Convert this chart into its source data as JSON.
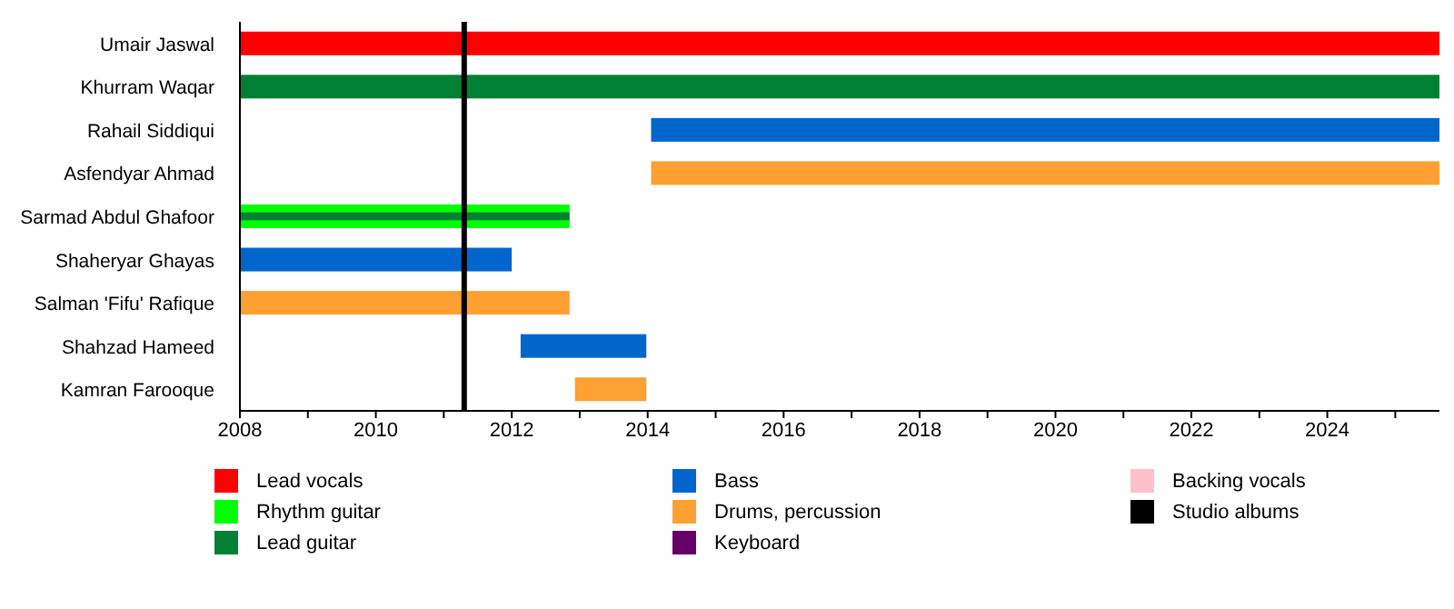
{
  "chart_data": {
    "type": "bar",
    "orientation": "horizontal",
    "categories": [
      "Umair Jaswal",
      "Khurram Waqar",
      "Rahail Siddiqui",
      "Asfendyar Ahmad",
      "Sarmad Abdul Ghafoor",
      "Shaheryar Ghayas",
      "Salman 'Fifu' Rafique",
      "Shahzad Hameed",
      "Kamran Farooque"
    ],
    "series": [
      {
        "name": "Lead vocals",
        "color": "#ff0000",
        "values": [
          17.65,
          null,
          null,
          null,
          null,
          null,
          null,
          null,
          null
        ],
        "base": [
          2008,
          null,
          null,
          null,
          null,
          null,
          null,
          null,
          null
        ]
      },
      {
        "name": "Rhythm guitar",
        "color": "#00ff00",
        "values": [
          null,
          null,
          null,
          null,
          4.85,
          null,
          null,
          null,
          null
        ],
        "base": [
          null,
          null,
          null,
          null,
          2008,
          null,
          null,
          null,
          null
        ]
      },
      {
        "name": "Lead guitar",
        "color": "#008033",
        "values": [
          null,
          17.65,
          null,
          null,
          4.85,
          null,
          null,
          null,
          null
        ],
        "base": [
          null,
          2008,
          null,
          null,
          2008,
          null,
          null,
          null,
          null
        ]
      },
      {
        "name": "Bass",
        "color": "#0066cc",
        "values": [
          null,
          null,
          11.6,
          null,
          null,
          4,
          null,
          1.85,
          null
        ],
        "base": [
          null,
          null,
          2014.05,
          null,
          null,
          2008,
          null,
          2012.13,
          null
        ]
      },
      {
        "name": "Drums, percussion",
        "color": "#ffa032",
        "values": [
          null,
          null,
          null,
          11.6,
          null,
          null,
          4.85,
          null,
          1.05
        ],
        "base": [
          null,
          null,
          null,
          2014.05,
          null,
          null,
          2008,
          null,
          2012.93
        ]
      },
      {
        "name": "Keyboard",
        "color": "#660066",
        "values": [
          null,
          null,
          null,
          null,
          null,
          null,
          null,
          null,
          null
        ]
      },
      {
        "name": "Backing vocals",
        "color": "#ffc0cb",
        "values": [
          null,
          null,
          null,
          null,
          null,
          null,
          null,
          null,
          null
        ]
      }
    ],
    "xlim": [
      2008,
      2025.65
    ],
    "xticks": [
      2008,
      {
        "value": 2009,
        "label": null
      },
      2010,
      {
        "value": 2011,
        "label": null
      },
      2012,
      {
        "value": 2013,
        "label": null
      },
      2014,
      {
        "value": 2015,
        "label": null
      },
      2016,
      {
        "value": 2017,
        "label": null
      },
      2018,
      {
        "value": 2019,
        "label": null
      },
      2020,
      {
        "value": 2021,
        "label": null
      },
      2022,
      {
        "value": 2023,
        "label": null
      },
      2024,
      {
        "value": 2025,
        "label": null
      }
    ],
    "ref_lines": [
      {
        "axis": "x",
        "value": 2011.3,
        "label": "Studio albums",
        "color": "#000000"
      }
    ],
    "legend": "bottom"
  }
}
